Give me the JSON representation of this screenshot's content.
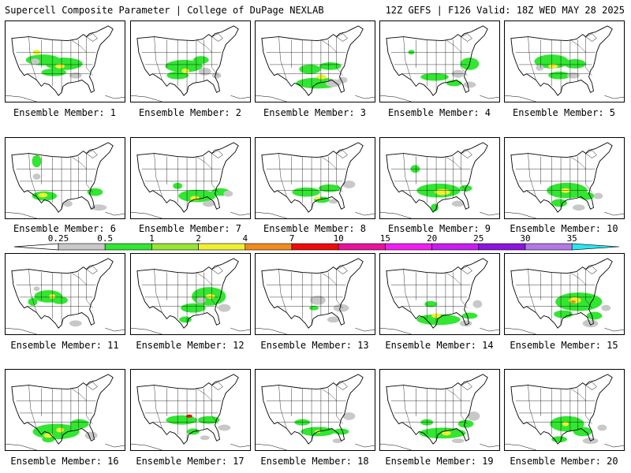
{
  "header": {
    "left_title": "Supercell Composite Parameter | College of DuPage NEXLAB",
    "right_title": "12Z GEFS | F126 Valid: 18Z WED MAY 28 2025"
  },
  "legend": {
    "ticks": [
      "0.25",
      "0.5",
      "1",
      "2",
      "4",
      "7",
      "10",
      "15",
      "20",
      "25",
      "30",
      "35"
    ],
    "colors": [
      "#c8c8c8",
      "#32e632",
      "#96e632",
      "#f0f032",
      "#f08c1e",
      "#f00a0a",
      "#e6149b",
      "#f01ef0",
      "#c81ef0",
      "#8c14dc",
      "#b478e6",
      "#28e6f0"
    ]
  },
  "members": [
    {
      "label": "Ensemble Member: 1",
      "blobs": [
        [
          48,
          50,
          22,
          7,
          "g"
        ],
        [
          75,
          55,
          24,
          8,
          "g"
        ],
        [
          62,
          66,
          16,
          5,
          "g"
        ],
        [
          70,
          58,
          6,
          3,
          "y"
        ],
        [
          40,
          40,
          5,
          3,
          "y"
        ],
        [
          90,
          70,
          8,
          4,
          "s"
        ],
        [
          38,
          52,
          6,
          4,
          "s"
        ]
      ]
    },
    {
      "label": "Ensemble Member: 2",
      "blobs": [
        [
          68,
          58,
          24,
          8,
          "g"
        ],
        [
          90,
          50,
          10,
          5,
          "g"
        ],
        [
          60,
          70,
          14,
          5,
          "g"
        ],
        [
          70,
          64,
          5,
          3,
          "y"
        ],
        [
          95,
          65,
          8,
          5,
          "s"
        ],
        [
          110,
          70,
          6,
          4,
          "s"
        ]
      ]
    },
    {
      "label": "Ensemble Member: 3",
      "blobs": [
        [
          80,
          80,
          28,
          7,
          "g"
        ],
        [
          70,
          62,
          14,
          6,
          "g"
        ],
        [
          96,
          58,
          14,
          5,
          "g"
        ],
        [
          85,
          72,
          6,
          3,
          "y"
        ],
        [
          100,
          80,
          10,
          5,
          "s"
        ],
        [
          112,
          76,
          6,
          4,
          "s"
        ]
      ]
    },
    {
      "label": "Ensemble Member: 4",
      "blobs": [
        [
          70,
          72,
          18,
          5,
          "g"
        ],
        [
          115,
          55,
          12,
          8,
          "g"
        ],
        [
          95,
          80,
          10,
          4,
          "g"
        ],
        [
          40,
          40,
          4,
          3,
          "g"
        ],
        [
          100,
          68,
          8,
          5,
          "s"
        ],
        [
          115,
          82,
          8,
          4,
          "s"
        ]
      ]
    },
    {
      "label": "Ensemble Member: 5",
      "blobs": [
        [
          60,
          52,
          22,
          9,
          "g"
        ],
        [
          90,
          55,
          14,
          6,
          "g"
        ],
        [
          70,
          70,
          14,
          5,
          "g"
        ],
        [
          62,
          58,
          6,
          3,
          "y"
        ],
        [
          88,
          70,
          8,
          4,
          "s"
        ],
        [
          45,
          60,
          5,
          4,
          "s"
        ]
      ]
    },
    {
      "label": "Ensemble Member: 6",
      "blobs": [
        [
          40,
          30,
          6,
          8,
          "g"
        ],
        [
          50,
          75,
          16,
          6,
          "g"
        ],
        [
          115,
          70,
          10,
          5,
          "g"
        ],
        [
          48,
          74,
          6,
          3,
          "y"
        ],
        [
          80,
          85,
          6,
          4,
          "s"
        ],
        [
          120,
          90,
          10,
          4,
          "s"
        ],
        [
          40,
          50,
          5,
          4,
          "s"
        ]
      ]
    },
    {
      "label": "Ensemble Member: 7",
      "blobs": [
        [
          85,
          75,
          24,
          8,
          "g"
        ],
        [
          115,
          70,
          12,
          5,
          "g"
        ],
        [
          60,
          62,
          6,
          4,
          "g"
        ],
        [
          82,
          78,
          6,
          3,
          "y"
        ],
        [
          100,
          85,
          8,
          4,
          "s"
        ],
        [
          125,
          72,
          6,
          4,
          "s"
        ]
      ]
    },
    {
      "label": "Ensemble Member: 8",
      "blobs": [
        [
          65,
          70,
          18,
          6,
          "g"
        ],
        [
          95,
          65,
          14,
          5,
          "g"
        ],
        [
          85,
          80,
          10,
          4,
          "g"
        ],
        [
          80,
          78,
          4,
          2,
          "y"
        ],
        [
          120,
          60,
          8,
          5,
          "s"
        ],
        [
          100,
          82,
          6,
          3,
          "s"
        ]
      ]
    },
    {
      "label": "Ensemble Member: 9",
      "blobs": [
        [
          75,
          68,
          28,
          9,
          "g"
        ],
        [
          45,
          40,
          6,
          5,
          "g"
        ],
        [
          110,
          65,
          8,
          4,
          "g"
        ],
        [
          80,
          70,
          10,
          4,
          "y"
        ],
        [
          70,
          90,
          5,
          5,
          "g"
        ],
        [
          100,
          85,
          8,
          4,
          "s"
        ]
      ]
    },
    {
      "label": "Ensemble Member: 10",
      "blobs": [
        [
          80,
          68,
          26,
          10,
          "g"
        ],
        [
          105,
          75,
          10,
          5,
          "g"
        ],
        [
          70,
          84,
          10,
          5,
          "g"
        ],
        [
          78,
          68,
          6,
          3,
          "y"
        ],
        [
          95,
          90,
          8,
          4,
          "s"
        ],
        [
          120,
          75,
          6,
          4,
          "s"
        ]
      ]
    },
    {
      "label": "Ensemble Member: 11",
      "blobs": [
        [
          55,
          55,
          18,
          8,
          "g"
        ],
        [
          70,
          60,
          10,
          5,
          "g"
        ],
        [
          35,
          62,
          6,
          5,
          "g"
        ],
        [
          60,
          55,
          4,
          3,
          "y"
        ],
        [
          90,
          90,
          8,
          4,
          "s"
        ],
        [
          40,
          45,
          4,
          3,
          "s"
        ]
      ]
    },
    {
      "label": "Ensemble Member: 12",
      "blobs": [
        [
          100,
          55,
          22,
          12,
          "g"
        ],
        [
          80,
          70,
          16,
          6,
          "g"
        ],
        [
          70,
          85,
          8,
          4,
          "g"
        ],
        [
          102,
          55,
          6,
          3,
          "y"
        ],
        [
          120,
          70,
          8,
          5,
          "s"
        ],
        [
          90,
          60,
          6,
          4,
          "s"
        ]
      ]
    },
    {
      "label": "Ensemble Member: 13",
      "blobs": [
        [
          75,
          70,
          6,
          3,
          "g"
        ],
        [
          80,
          60,
          10,
          6,
          "s"
        ],
        [
          110,
          70,
          10,
          5,
          "s"
        ],
        [
          100,
          85,
          8,
          4,
          "s"
        ]
      ]
    },
    {
      "label": "Ensemble Member: 14",
      "blobs": [
        [
          75,
          85,
          28,
          7,
          "g"
        ],
        [
          65,
          65,
          8,
          4,
          "g"
        ],
        [
          115,
          80,
          10,
          4,
          "g"
        ],
        [
          72,
          80,
          6,
          3,
          "y"
        ],
        [
          110,
          90,
          8,
          4,
          "s"
        ],
        [
          125,
          65,
          6,
          5,
          "s"
        ]
      ]
    },
    {
      "label": "Ensemble Member: 15",
      "blobs": [
        [
          95,
          62,
          30,
          12,
          "g"
        ],
        [
          75,
          78,
          12,
          5,
          "g"
        ],
        [
          115,
          80,
          10,
          5,
          "g"
        ],
        [
          90,
          60,
          8,
          4,
          "y"
        ],
        [
          88,
          62,
          3,
          2,
          "o"
        ],
        [
          110,
          90,
          10,
          5,
          "s"
        ],
        [
          130,
          70,
          6,
          4,
          "s"
        ]
      ]
    },
    {
      "label": "Ensemble Member: 16",
      "blobs": [
        [
          65,
          80,
          30,
          10,
          "g"
        ],
        [
          95,
          70,
          12,
          6,
          "g"
        ],
        [
          55,
          90,
          8,
          4,
          "g"
        ],
        [
          55,
          85,
          6,
          3,
          "y"
        ],
        [
          70,
          78,
          5,
          3,
          "y"
        ],
        [
          110,
          85,
          8,
          5,
          "s"
        ]
      ]
    },
    {
      "label": "Ensemble Member: 17",
      "blobs": [
        [
          65,
          65,
          20,
          6,
          "g"
        ],
        [
          100,
          65,
          14,
          5,
          "g"
        ],
        [
          80,
          80,
          8,
          4,
          "g"
        ],
        [
          75,
          60,
          4,
          2,
          "r"
        ],
        [
          120,
          75,
          8,
          4,
          "s"
        ],
        [
          95,
          88,
          6,
          3,
          "s"
        ]
      ]
    },
    {
      "label": "Ensemble Member: 18",
      "blobs": [
        [
          80,
          80,
          22,
          6,
          "g"
        ],
        [
          60,
          68,
          10,
          4,
          "g"
        ],
        [
          110,
          80,
          10,
          4,
          "g"
        ],
        [
          80,
          80,
          4,
          2,
          "y"
        ],
        [
          120,
          60,
          8,
          5,
          "s"
        ],
        [
          105,
          92,
          6,
          3,
          "s"
        ]
      ]
    },
    {
      "label": "Ensemble Member: 19",
      "blobs": [
        [
          80,
          82,
          30,
          7,
          "g"
        ],
        [
          60,
          68,
          8,
          4,
          "g"
        ],
        [
          110,
          70,
          10,
          5,
          "g"
        ],
        [
          85,
          82,
          6,
          3,
          "y"
        ],
        [
          120,
          60,
          8,
          6,
          "s"
        ],
        [
          100,
          92,
          8,
          3,
          "s"
        ]
      ]
    },
    {
      "label": "Ensemble Member: 20",
      "blobs": [
        [
          80,
          70,
          22,
          10,
          "g"
        ],
        [
          100,
          80,
          12,
          6,
          "g"
        ],
        [
          70,
          90,
          10,
          4,
          "g"
        ],
        [
          78,
          70,
          4,
          3,
          "y"
        ],
        [
          110,
          92,
          10,
          4,
          "s"
        ],
        [
          125,
          75,
          6,
          4,
          "s"
        ]
      ]
    }
  ]
}
